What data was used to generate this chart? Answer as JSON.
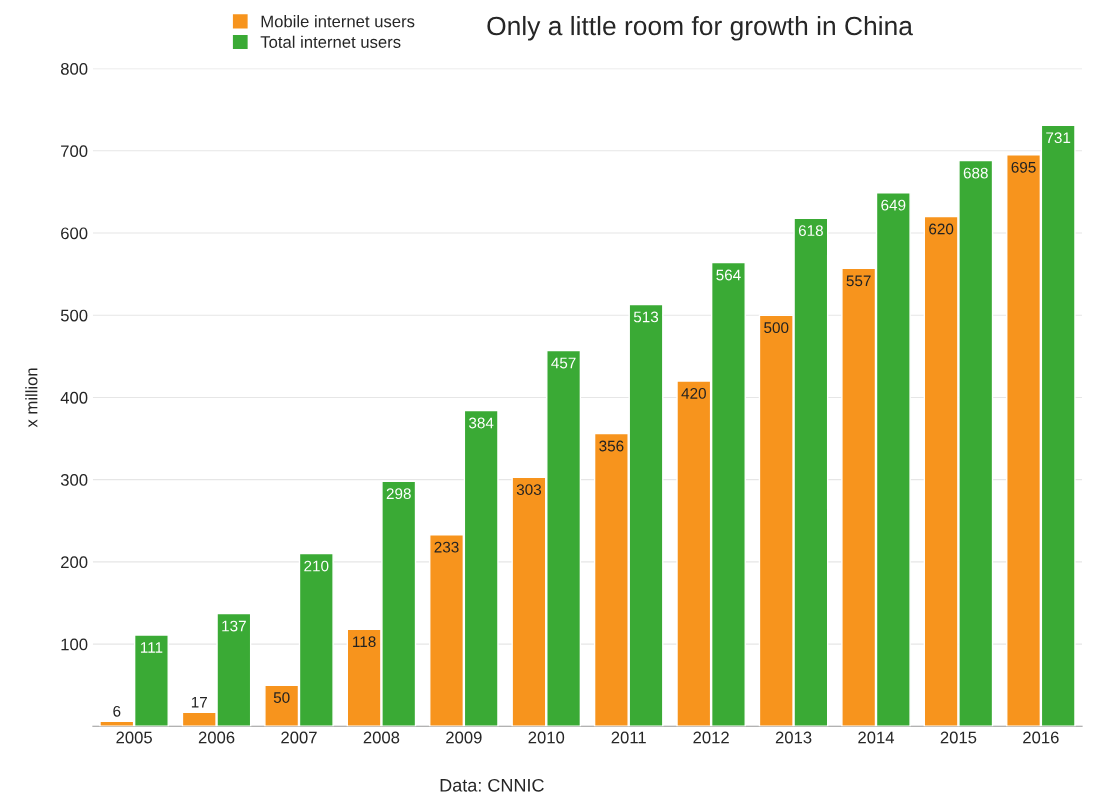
{
  "chart_data": {
    "type": "bar",
    "title": "Only a little room for growth in China",
    "ylabel": "x million",
    "categories": [
      "2005",
      "2006",
      "2007",
      "2008",
      "2009",
      "2010",
      "2011",
      "2012",
      "2013",
      "2014",
      "2015",
      "2016"
    ],
    "series": [
      {
        "name": "Mobile internet users",
        "color": "#f7941d",
        "values": [
          6,
          17,
          50,
          118,
          233,
          303,
          356,
          420,
          500,
          557,
          620,
          695
        ]
      },
      {
        "name": "Total internet users",
        "color": "#3aaa35",
        "values": [
          111,
          137,
          210,
          298,
          384,
          457,
          513,
          564,
          618,
          649,
          688,
          731
        ]
      }
    ],
    "ylim": [
      0,
      800
    ],
    "yticks": [
      100,
      200,
      300,
      400,
      500,
      600,
      700,
      800
    ],
    "grid": "y",
    "legend": "top left",
    "data_labels": true,
    "annotations": [
      "Data: CNNIC"
    ]
  }
}
